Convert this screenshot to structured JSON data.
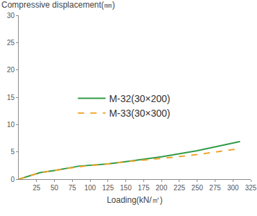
{
  "chart_data": {
    "type": "line",
    "x_label": "Loading(kN/㎡)",
    "y_label": "Compressive displacement(㎜)",
    "series": [
      {
        "name": "M-32(30×200)",
        "color": "#2e9a44",
        "line_style": "solid",
        "x": [
          0,
          30,
          50,
          85,
          125,
          150,
          200,
          250,
          310
        ],
        "values": [
          0,
          1.2,
          1.6,
          2.4,
          2.8,
          3.2,
          4.1,
          5.2,
          6.9
        ]
      },
      {
        "name": "M-33(30×300)",
        "color": "#f0a428",
        "line_style": "dash",
        "x": [
          0,
          30,
          50,
          85,
          125,
          150,
          200,
          250,
          310
        ],
        "values": [
          0,
          1.2,
          1.6,
          2.3,
          2.8,
          3.2,
          3.8,
          4.5,
          5.6
        ]
      }
    ],
    "xlim": [
      0,
      325
    ],
    "xticks": [
      25,
      50,
      75,
      100,
      125,
      150,
      175,
      200,
      225,
      250,
      275,
      300,
      325
    ],
    "ylim": [
      0,
      30
    ],
    "yticks": [
      0,
      5,
      10,
      15,
      20,
      25,
      30
    ],
    "grid": false,
    "legend": "center"
  }
}
